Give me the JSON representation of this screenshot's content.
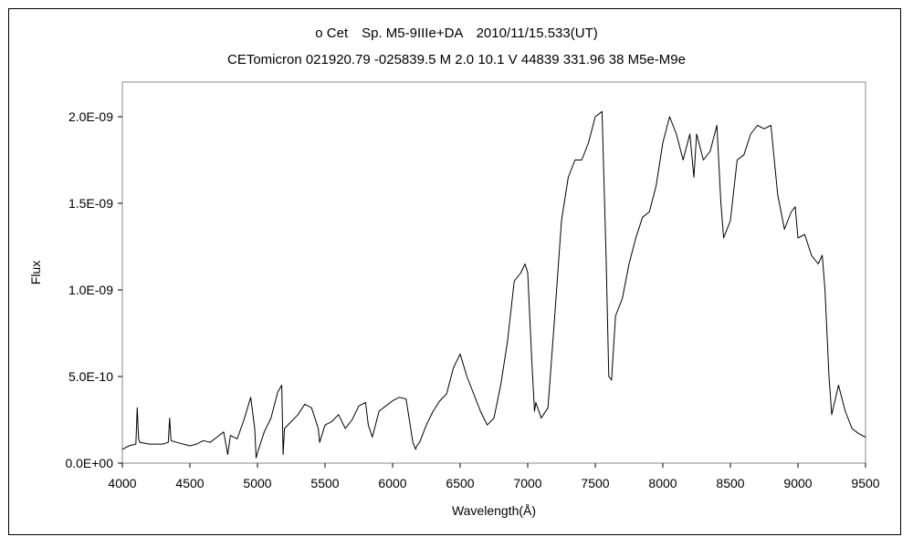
{
  "chart_data": {
    "type": "line",
    "title": "ο Cet　Sp. M5-9IIIe+DA　2010/11/15.533(UT)",
    "subtitle": "CETomicron 021920.79 -025839.5 M 2.0 10.1 V 44839 331.96 38 M5e-M9e",
    "xlabel": "Wavelength(Å)",
    "ylabel": "Flux",
    "xlim": [
      4000,
      9500
    ],
    "ylim": [
      0,
      2.2e-09
    ],
    "x_ticks": [
      4000,
      4500,
      5000,
      5500,
      6000,
      6500,
      7000,
      7500,
      8000,
      8500,
      9000,
      9500
    ],
    "x_tick_labels": [
      "4000",
      "4500",
      "5000",
      "5500",
      "6000",
      "6500",
      "7000",
      "7500",
      "8000",
      "8500",
      "9000",
      "9500"
    ],
    "y_ticks": [
      0,
      5e-10,
      1e-09,
      1.5e-09,
      2e-09
    ],
    "y_tick_labels": [
      "0.0E+00",
      "5.0E-10",
      "1.0E-09",
      "1.5E-09",
      "2.0E-09"
    ],
    "grid": false,
    "line_color": "#000000",
    "series": [
      {
        "x": [
          4000,
          4050,
          4100,
          4110,
          4120,
          4130,
          4200,
          4300,
          4340,
          4350,
          4360,
          4400,
          4500,
          4550,
          4600,
          4650,
          4700,
          4750,
          4780,
          4800,
          4850,
          4900,
          4950,
          4980,
          4990,
          5000,
          5050,
          5100,
          5150,
          5180,
          5190,
          5200,
          5250,
          5300,
          5350,
          5400,
          5450,
          5460,
          5500,
          5550,
          5600,
          5650,
          5700,
          5750,
          5800,
          5820,
          5850,
          5900,
          5950,
          6000,
          6050,
          6100,
          6150,
          6170,
          6180,
          6200,
          6250,
          6300,
          6350,
          6400,
          6450,
          6500,
          6550,
          6600,
          6650,
          6700,
          6750,
          6800,
          6850,
          6900,
          6950,
          6980,
          7000,
          7030,
          7050,
          7060,
          7100,
          7150,
          7200,
          7250,
          7300,
          7350,
          7400,
          7450,
          7500,
          7550,
          7580,
          7600,
          7620,
          7650,
          7700,
          7750,
          7800,
          7850,
          7900,
          7950,
          8000,
          8050,
          8100,
          8150,
          8200,
          8230,
          8250,
          8300,
          8350,
          8400,
          8430,
          8450,
          8500,
          8550,
          8600,
          8650,
          8700,
          8750,
          8800,
          8850,
          8900,
          8950,
          8980,
          9000,
          9050,
          9100,
          9150,
          9180,
          9200,
          9230,
          9250,
          9300,
          9350,
          9400,
          9450,
          9500
        ],
        "y": [
          8e-11,
          1e-10,
          1.1e-10,
          3.2e-10,
          1.4e-10,
          1.2e-10,
          1.1e-10,
          1.1e-10,
          1.2e-10,
          2.6e-10,
          1.3e-10,
          1.2e-10,
          1e-10,
          1.1e-10,
          1.3e-10,
          1.2e-10,
          1.5e-10,
          1.8e-10,
          5e-11,
          1.6e-10,
          1.4e-10,
          2.5e-10,
          3.8e-10,
          2e-10,
          3e-11,
          6e-11,
          1.8e-10,
          2.6e-10,
          4.1e-10,
          4.5e-10,
          5e-11,
          2e-10,
          2.4e-10,
          2.8e-10,
          3.4e-10,
          3.2e-10,
          2e-10,
          1.2e-10,
          2.2e-10,
          2.4e-10,
          2.8e-10,
          2e-10,
          2.5e-10,
          3.3e-10,
          3.5e-10,
          2.2e-10,
          1.5e-10,
          3e-10,
          3.3e-10,
          3.6e-10,
          3.8e-10,
          3.7e-10,
          1.2e-10,
          8e-11,
          1e-10,
          1.2e-10,
          2.2e-10,
          3e-10,
          3.6e-10,
          4e-10,
          5.5e-10,
          6.3e-10,
          5e-10,
          4e-10,
          3e-10,
          2.2e-10,
          2.6e-10,
          4.5e-10,
          7e-10,
          1.05e-09,
          1.1e-09,
          1.15e-09,
          1.1e-09,
          6e-10,
          3e-10,
          3.5e-10,
          2.6e-10,
          3.2e-10,
          8.5e-10,
          1.4e-09,
          1.65e-09,
          1.75e-09,
          1.75e-09,
          1.85e-09,
          2e-09,
          2.03e-09,
          1.2e-09,
          5e-10,
          4.8e-10,
          8.5e-10,
          9.5e-10,
          1.15e-09,
          1.3e-09,
          1.42e-09,
          1.45e-09,
          1.6e-09,
          1.85e-09,
          2e-09,
          1.9e-09,
          1.75e-09,
          1.9e-09,
          1.65e-09,
          1.9e-09,
          1.75e-09,
          1.8e-09,
          1.95e-09,
          1.5e-09,
          1.3e-09,
          1.4e-09,
          1.75e-09,
          1.78e-09,
          1.9e-09,
          1.95e-09,
          1.93e-09,
          1.95e-09,
          1.55e-09,
          1.35e-09,
          1.45e-09,
          1.48e-09,
          1.3e-09,
          1.32e-09,
          1.2e-09,
          1.15e-09,
          1.2e-09,
          1e-09,
          5e-10,
          2.8e-10,
          4.5e-10,
          3e-10,
          2e-10,
          1.7e-10,
          1.5e-10
        ]
      }
    ]
  }
}
